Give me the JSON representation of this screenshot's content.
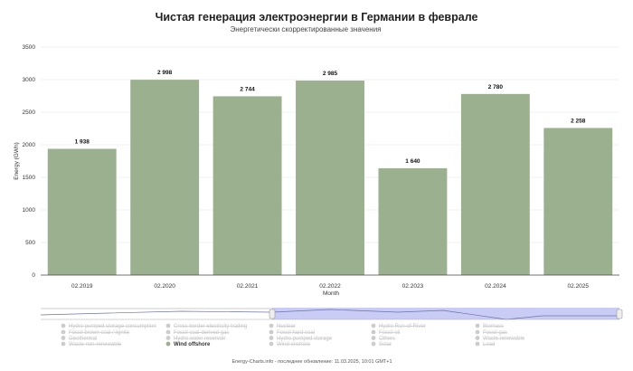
{
  "chart_data": {
    "type": "bar",
    "title": "Чистая генерация электроэнергии в Германии в феврале",
    "subtitle": "Энергетически скорректированные значения",
    "xlabel": "Month",
    "ylabel": "Energy (GWh)",
    "ylim": [
      0,
      3500
    ],
    "yticks": [
      0,
      500,
      1000,
      1500,
      2000,
      2500,
      3000,
      3500
    ],
    "grid": true,
    "categories": [
      "02.2019",
      "02.2020",
      "02.2021",
      "02.2022",
      "02.2023",
      "02.2024",
      "02.2025"
    ],
    "values": [
      1938,
      2998,
      2744,
      2985,
      1640,
      2780,
      2258
    ],
    "value_labels": [
      "1 938",
      "2 998",
      "2 744",
      "2 985",
      "1 640",
      "2 780",
      "2 258"
    ],
    "bar_color": "#9bb08f"
  },
  "legend": [
    [
      {
        "label": "Hydro pumped storage consumption",
        "active": false
      },
      {
        "label": "Fossil brown coal / lignite",
        "active": false
      },
      {
        "label": "Geothermal",
        "active": false
      },
      {
        "label": "Waste non-renewable",
        "active": false
      }
    ],
    [
      {
        "label": "Cross border electricity trading",
        "active": false
      },
      {
        "label": "Fossil coal-derived gas",
        "active": false
      },
      {
        "label": "Hydro water reservoir",
        "active": false
      },
      {
        "label": "Wind offshore",
        "active": true
      }
    ],
    [
      {
        "label": "Nuclear",
        "active": false
      },
      {
        "label": "Fossil hard coal",
        "active": false
      },
      {
        "label": "Hydro pumped storage",
        "active": false
      },
      {
        "label": "Wind onshore",
        "active": false
      }
    ],
    [
      {
        "label": "Hydro Run-of-River",
        "active": false
      },
      {
        "label": "Fossil oil",
        "active": false
      },
      {
        "label": "Others",
        "active": false
      },
      {
        "label": "Solar",
        "active": false
      }
    ],
    [
      {
        "label": "Biomass",
        "active": false
      },
      {
        "label": "Fossil gas",
        "active": false
      },
      {
        "label": "Waste renewable",
        "active": false
      },
      {
        "label": "Load",
        "active": false
      }
    ]
  ],
  "legend_colors": {
    "active": "#9bb08f",
    "inactive": "#cccccc"
  },
  "navigator_color": "#c9ccf5",
  "footer": "Energy-Charts.info - последнее обновление: 11.03.2025, 10:01 GMT+1"
}
